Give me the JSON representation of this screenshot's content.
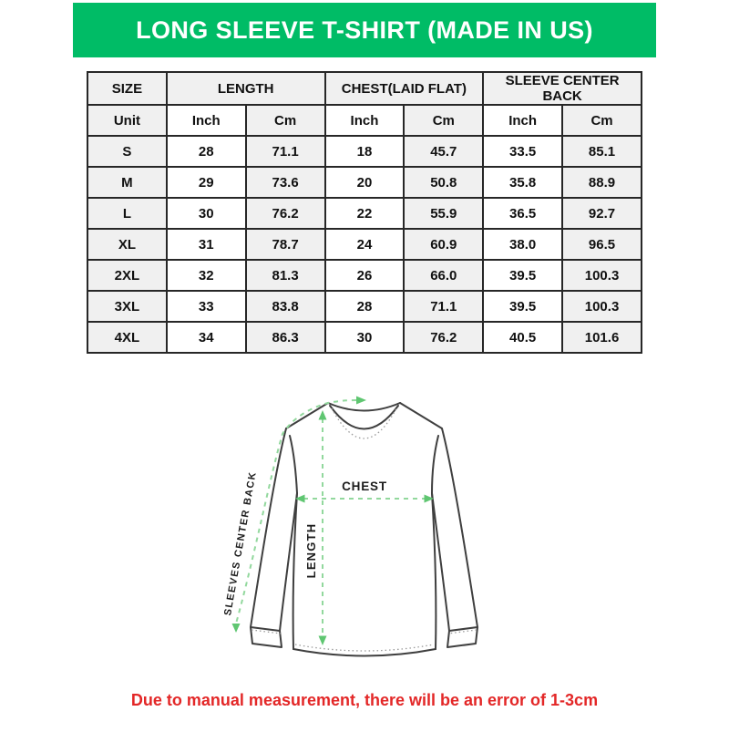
{
  "banner": {
    "title": "LONG SLEEVE T-SHIRT (MADE IN US)",
    "background_color": "#00bc66",
    "text_color": "#ffffff"
  },
  "size_table": {
    "column_groups": [
      "SIZE",
      "LENGTH",
      "CHEST(LAID FLAT)",
      "SLEEVE CENTER BACK"
    ],
    "unit_row": [
      "Unit",
      "Inch",
      "Cm",
      "Inch",
      "Cm",
      "Inch",
      "Cm"
    ],
    "rows": [
      [
        "S",
        "28",
        "71.1",
        "18",
        "45.7",
        "33.5",
        "85.1"
      ],
      [
        "M",
        "29",
        "73.6",
        "20",
        "50.8",
        "35.8",
        "88.9"
      ],
      [
        "L",
        "30",
        "76.2",
        "22",
        "55.9",
        "36.5",
        "92.7"
      ],
      [
        "XL",
        "31",
        "78.7",
        "24",
        "60.9",
        "38.0",
        "96.5"
      ],
      [
        "2XL",
        "32",
        "81.3",
        "26",
        "66.0",
        "39.5",
        "100.3"
      ],
      [
        "3XL",
        "33",
        "83.8",
        "28",
        "71.1",
        "39.5",
        "100.3"
      ],
      [
        "4XL",
        "34",
        "86.3",
        "30",
        "76.2",
        "40.5",
        "101.6"
      ]
    ],
    "header_bg": "#f0f0f0",
    "border_color": "#272727"
  },
  "diagram": {
    "labels": {
      "chest": "CHEST",
      "length": "LENGTH",
      "sleeve_center_back": "SLEEVES CENTER BACK"
    },
    "dash_color": "#92d89d",
    "arrow_color": "#5fc671",
    "outline_color": "#3f3f3f"
  },
  "disclaimer": {
    "text": "Due to manual measurement, there will be an error of 1-3cm",
    "color": "#e32727"
  }
}
